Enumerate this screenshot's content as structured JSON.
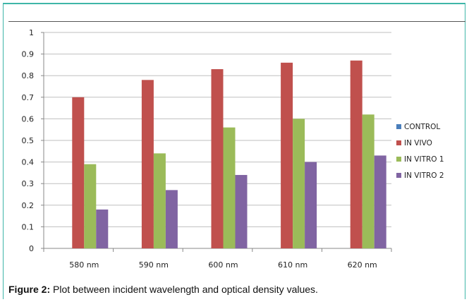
{
  "chart_data": {
    "type": "bar",
    "categories": [
      "580 nm",
      "590 nm",
      "600 nm",
      "610 nm",
      "620 nm"
    ],
    "ylim": [
      0,
      1
    ],
    "yticks": [
      "0",
      "0.1",
      "0.2",
      "0.3",
      "0.4",
      "0.5",
      "0.6",
      "0.7",
      "0.8",
      "0.9",
      "1"
    ],
    "legend_position": "right",
    "grid": true,
    "series": [
      {
        "name": "CONTROL",
        "color": "#4a7ebb",
        "values": [
          0,
          0,
          0,
          0,
          0
        ]
      },
      {
        "name": "IN VIVO",
        "color": "#c0504d",
        "values": [
          0.7,
          0.78,
          0.83,
          0.86,
          0.87
        ]
      },
      {
        "name": "IN VITRO 1",
        "color": "#9bbb59",
        "values": [
          0.39,
          0.44,
          0.56,
          0.6,
          0.62
        ]
      },
      {
        "name": "IN VITRO 2",
        "color": "#8064a2",
        "values": [
          0.18,
          0.27,
          0.34,
          0.4,
          0.43
        ]
      }
    ]
  },
  "caption": {
    "label": "Figure 2:",
    "text": " Plot between incident wavelength and optical density values."
  }
}
